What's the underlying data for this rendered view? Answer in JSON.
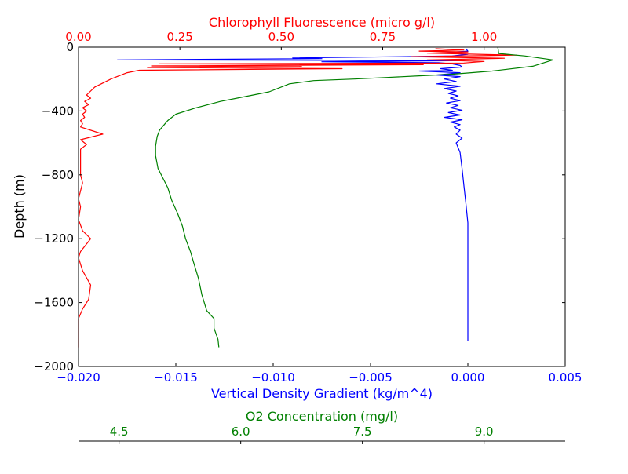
{
  "chart_data": {
    "type": "line",
    "colors": {
      "density": "#0000ff",
      "chlorophyll": "#ff0000",
      "oxygen": "#008000",
      "axes": "#000000"
    },
    "y_axis": {
      "label": "Depth (m)",
      "range": [
        -2000,
        0
      ],
      "ticks": [
        0,
        -400,
        -800,
        -1200,
        -1600,
        -2000
      ],
      "tick_labels": [
        "0",
        "−400",
        "−800",
        "−1200",
        "−1600",
        "−2000"
      ]
    },
    "x_axes": {
      "density": {
        "label": "Vertical Density Gradient (kg/m^4)",
        "range": [
          -0.02,
          0.005
        ],
        "ticks": [
          -0.02,
          -0.015,
          -0.01,
          -0.005,
          0.0,
          0.005
        ],
        "tick_labels": [
          "−0.020",
          "−0.015",
          "−0.010",
          "−0.005",
          "0.000",
          "0.005"
        ]
      },
      "chlorophyll": {
        "label": "Chlorophyll Fluorescence (micro g/l)",
        "range": [
          0.0,
          1.2
        ],
        "ticks": [
          0.0,
          0.25,
          0.5,
          0.75,
          1.0
        ],
        "tick_labels": [
          "0.00",
          "0.25",
          "0.50",
          "0.75",
          "1.00"
        ]
      },
      "oxygen": {
        "label": "O2 Concentration (mg/l)",
        "range": [
          4.0,
          10.0
        ],
        "ticks": [
          4.5,
          6.0,
          7.5,
          9.0
        ],
        "tick_labels": [
          "4.5",
          "6.0",
          "7.5",
          "9.0"
        ]
      }
    },
    "series": [
      {
        "key": "density",
        "points": [
          [
            -0.0001,
            -10
          ],
          [
            0.0,
            -25
          ],
          [
            -0.0012,
            -35
          ],
          [
            0.0,
            -45
          ],
          [
            -0.0008,
            -55
          ],
          [
            -0.0035,
            -60
          ],
          [
            -0.009,
            -68
          ],
          [
            -0.0075,
            -72
          ],
          [
            -0.018,
            -80
          ],
          [
            -0.0002,
            -85
          ],
          [
            -0.0075,
            -92
          ],
          [
            -0.0015,
            -98
          ],
          [
            -0.0008,
            -105
          ],
          [
            -0.0004,
            -115
          ],
          [
            -0.0003,
            -125
          ],
          [
            -0.0014,
            -135
          ],
          [
            -0.0008,
            -145
          ],
          [
            -0.0025,
            -150
          ],
          [
            -0.0004,
            -160
          ],
          [
            -0.0016,
            -175
          ],
          [
            -0.0004,
            -185
          ],
          [
            -0.0012,
            -200
          ],
          [
            -0.0006,
            -215
          ],
          [
            -0.0016,
            -230
          ],
          [
            -0.0004,
            -245
          ],
          [
            -0.0012,
            -260
          ],
          [
            -0.0006,
            -275
          ],
          [
            -0.001,
            -290
          ],
          [
            -0.0005,
            -305
          ],
          [
            -0.0009,
            -320
          ],
          [
            -0.0004,
            -335
          ],
          [
            -0.0011,
            -350
          ],
          [
            -0.0005,
            -365
          ],
          [
            -0.0009,
            -380
          ],
          [
            -0.0003,
            -395
          ],
          [
            -0.001,
            -410
          ],
          [
            -0.0004,
            -425
          ],
          [
            -0.0012,
            -440
          ],
          [
            -0.0003,
            -455
          ],
          [
            -0.0009,
            -470
          ],
          [
            -0.0004,
            -485
          ],
          [
            -0.0007,
            -500
          ],
          [
            -0.0004,
            -520
          ],
          [
            -0.0006,
            -545
          ],
          [
            -0.0003,
            -570
          ],
          [
            -0.0006,
            -600
          ],
          [
            -0.0004,
            -660
          ],
          [
            -0.0003,
            -760
          ],
          [
            -0.0002,
            -870
          ],
          [
            -0.0001,
            -980
          ],
          [
            0.0,
            -1100
          ],
          [
            0.0,
            -1300
          ],
          [
            0.0,
            -1450
          ],
          [
            0.0,
            -1600
          ],
          [
            0.0,
            -1750
          ],
          [
            0.0,
            -1840
          ]
        ]
      },
      {
        "key": "chlorophyll",
        "points": [
          [
            0.88,
            -10
          ],
          [
            0.95,
            -18
          ],
          [
            0.84,
            -25
          ],
          [
            0.96,
            -30
          ],
          [
            0.86,
            -38
          ],
          [
            1.08,
            -50
          ],
          [
            0.82,
            -60
          ],
          [
            1.05,
            -70
          ],
          [
            0.86,
            -80
          ],
          [
            1.0,
            -90
          ],
          [
            0.95,
            -100
          ],
          [
            0.2,
            -105
          ],
          [
            0.85,
            -110
          ],
          [
            0.18,
            -118
          ],
          [
            0.55,
            -122
          ],
          [
            0.17,
            -128
          ],
          [
            0.65,
            -135
          ],
          [
            0.15,
            -145
          ],
          [
            0.12,
            -160
          ],
          [
            0.1,
            -180
          ],
          [
            0.08,
            -200
          ],
          [
            0.06,
            -225
          ],
          [
            0.04,
            -250
          ],
          [
            0.03,
            -275
          ],
          [
            0.02,
            -300
          ],
          [
            0.03,
            -320
          ],
          [
            0.015,
            -340
          ],
          [
            0.025,
            -360
          ],
          [
            0.01,
            -380
          ],
          [
            0.02,
            -400
          ],
          [
            0.01,
            -420
          ],
          [
            0.015,
            -440
          ],
          [
            0.005,
            -460
          ],
          [
            0.01,
            -480
          ],
          [
            0.005,
            -500
          ],
          [
            0.06,
            -545
          ],
          [
            0.005,
            -580
          ],
          [
            0.02,
            -610
          ],
          [
            0.005,
            -640
          ],
          [
            0.005,
            -700
          ],
          [
            0.005,
            -800
          ],
          [
            0.01,
            -850
          ],
          [
            0.0,
            -950
          ],
          [
            0.005,
            -1000
          ],
          [
            0.0,
            -1080
          ],
          [
            0.01,
            -1150
          ],
          [
            0.03,
            -1200
          ],
          [
            0.005,
            -1280
          ],
          [
            0.0,
            -1320
          ],
          [
            0.01,
            -1400
          ],
          [
            0.03,
            -1490
          ],
          [
            0.025,
            -1580
          ],
          [
            0.01,
            -1640
          ],
          [
            0.0,
            -1700
          ],
          [
            0.0,
            -1800
          ],
          [
            0.0,
            -1880
          ]
        ]
      },
      {
        "key": "oxygen",
        "points": [
          [
            9.17,
            0
          ],
          [
            9.18,
            -40
          ],
          [
            9.5,
            -55
          ],
          [
            9.85,
            -80
          ],
          [
            9.6,
            -120
          ],
          [
            9.1,
            -150
          ],
          [
            8.6,
            -170
          ],
          [
            8.2,
            -180
          ],
          [
            7.8,
            -190
          ],
          [
            7.4,
            -200
          ],
          [
            6.9,
            -210
          ],
          [
            6.6,
            -230
          ],
          [
            6.35,
            -280
          ],
          [
            6.05,
            -310
          ],
          [
            5.75,
            -340
          ],
          [
            5.45,
            -380
          ],
          [
            5.2,
            -420
          ],
          [
            5.1,
            -460
          ],
          [
            5.05,
            -490
          ],
          [
            5.0,
            -520
          ],
          [
            4.97,
            -560
          ],
          [
            4.95,
            -620
          ],
          [
            4.95,
            -680
          ],
          [
            4.98,
            -760
          ],
          [
            5.05,
            -830
          ],
          [
            5.1,
            -880
          ],
          [
            5.15,
            -960
          ],
          [
            5.22,
            -1040
          ],
          [
            5.28,
            -1120
          ],
          [
            5.32,
            -1200
          ],
          [
            5.38,
            -1280
          ],
          [
            5.42,
            -1350
          ],
          [
            5.48,
            -1450
          ],
          [
            5.52,
            -1550
          ],
          [
            5.58,
            -1650
          ],
          [
            5.67,
            -1700
          ],
          [
            5.67,
            -1760
          ],
          [
            5.72,
            -1830
          ],
          [
            5.73,
            -1880
          ]
        ]
      }
    ]
  }
}
